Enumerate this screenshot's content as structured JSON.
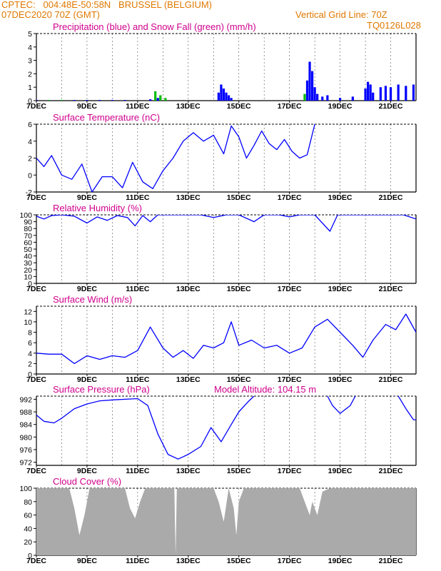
{
  "header": {
    "line1": "CPTEC:   004:48E-50:58N   BRUSSEL (BELGIUM)",
    "line2": "07DEC2020 70Z (GMT)",
    "grid_note": "Vertical Grid Line: 70Z",
    "code": "TQ0126L028"
  },
  "colors": {
    "title": "#d0008c",
    "header": "#e07800",
    "line": "#0000ff",
    "snow": "#00bb00",
    "cloud": "#aaaaaa"
  },
  "x_ticks": [
    "7DEC",
    "9DEC",
    "11DEC",
    "13DEC",
    "15DEC",
    "17DEC",
    "19DEC",
    "21DEC"
  ],
  "chart_data": [
    {
      "type": "bar",
      "title": "Precipitation (blue) and Snow Fall (green) (mm/h)",
      "ylim": [
        0,
        5
      ],
      "yticks": [
        0,
        1,
        2,
        3,
        4,
        5
      ],
      "series": [
        {
          "name": "Precipitation",
          "values": [
            [
              7.0,
              0.05
            ],
            [
              7.5,
              0.05
            ],
            [
              8.0,
              0.05
            ],
            [
              8.5,
              0.05
            ],
            [
              9.0,
              0.05
            ],
            [
              9.5,
              0.05
            ],
            [
              10.0,
              0.05
            ],
            [
              10.5,
              0.05
            ],
            [
              11.5,
              0.1
            ],
            [
              11.8,
              0.2
            ],
            [
              14.2,
              0.6
            ],
            [
              14.3,
              1.2
            ],
            [
              14.4,
              0.9
            ],
            [
              14.5,
              0.6
            ],
            [
              14.6,
              0.4
            ],
            [
              14.7,
              0.2
            ],
            [
              17.7,
              1.5
            ],
            [
              17.8,
              2.9
            ],
            [
              17.9,
              2.2
            ],
            [
              18.0,
              1.0
            ],
            [
              18.1,
              0.5
            ],
            [
              18.3,
              0.3
            ],
            [
              18.5,
              0.4
            ],
            [
              19.0,
              0.2
            ],
            [
              19.5,
              0.3
            ],
            [
              20.0,
              0.9
            ],
            [
              20.1,
              1.4
            ],
            [
              20.2,
              1.2
            ],
            [
              20.3,
              0.6
            ],
            [
              20.6,
              1.0
            ],
            [
              20.8,
              1.1
            ],
            [
              21.0,
              1.0
            ],
            [
              21.3,
              1.2
            ],
            [
              21.6,
              1.1
            ],
            [
              21.9,
              1.2
            ]
          ]
        },
        {
          "name": "Snow Fall",
          "values": [
            [
              7.5,
              0.05
            ],
            [
              8.0,
              0.05
            ],
            [
              11.7,
              0.7
            ],
            [
              11.9,
              0.4
            ],
            [
              12.1,
              0.2
            ],
            [
              17.6,
              0.5
            ]
          ]
        }
      ]
    },
    {
      "type": "line",
      "title": "Surface Temperature (nC)",
      "ylim": [
        -2,
        6
      ],
      "yticks": [
        -2,
        0,
        2,
        4,
        6
      ],
      "series": [
        {
          "name": "Surface Temperature",
          "values": [
            [
              7.0,
              2.0
            ],
            [
              7.3,
              1.0
            ],
            [
              7.6,
              2.3
            ],
            [
              8.0,
              0.0
            ],
            [
              8.4,
              -0.5
            ],
            [
              8.8,
              1.3
            ],
            [
              9.2,
              -2.0
            ],
            [
              9.6,
              -0.2
            ],
            [
              10.0,
              -0.2
            ],
            [
              10.4,
              -1.5
            ],
            [
              10.8,
              1.5
            ],
            [
              11.2,
              -0.8
            ],
            [
              11.6,
              -1.6
            ],
            [
              12.0,
              0.5
            ],
            [
              12.4,
              2.0
            ],
            [
              12.8,
              4.0
            ],
            [
              13.2,
              5.0
            ],
            [
              13.6,
              4.0
            ],
            [
              14.0,
              4.7
            ],
            [
              14.4,
              2.5
            ],
            [
              14.7,
              5.8
            ],
            [
              15.0,
              4.5
            ],
            [
              15.3,
              2.0
            ],
            [
              15.6,
              3.5
            ],
            [
              15.9,
              5.2
            ],
            [
              16.2,
              3.7
            ],
            [
              16.5,
              3.0
            ],
            [
              16.8,
              4.2
            ],
            [
              17.1,
              2.8
            ],
            [
              17.4,
              2.0
            ],
            [
              17.7,
              2.4
            ],
            [
              18.0,
              6.0
            ]
          ]
        }
      ]
    },
    {
      "type": "line",
      "title": "Relative Humidity (%)",
      "ylim": [
        0,
        100
      ],
      "yticks": [
        0,
        10,
        20,
        30,
        40,
        50,
        60,
        70,
        80,
        90,
        100
      ],
      "series": [
        {
          "name": "Relative Humidity",
          "values": [
            [
              7.0,
              98
            ],
            [
              7.3,
              94
            ],
            [
              7.6,
              99
            ],
            [
              8.0,
              100
            ],
            [
              8.5,
              98
            ],
            [
              9.0,
              88
            ],
            [
              9.4,
              97
            ],
            [
              9.8,
              92
            ],
            [
              10.2,
              99
            ],
            [
              10.6,
              96
            ],
            [
              10.9,
              84
            ],
            [
              11.2,
              99
            ],
            [
              11.5,
              90
            ],
            [
              11.8,
              100
            ],
            [
              12.5,
              100
            ],
            [
              13.0,
              100
            ],
            [
              13.5,
              100
            ],
            [
              14.0,
              96
            ],
            [
              14.5,
              100
            ],
            [
              15.0,
              100
            ],
            [
              15.6,
              90
            ],
            [
              16.0,
              100
            ],
            [
              16.6,
              100
            ],
            [
              17.0,
              97
            ],
            [
              17.4,
              100
            ],
            [
              18.0,
              100
            ],
            [
              18.6,
              76
            ],
            [
              18.9,
              100
            ],
            [
              19.5,
              100
            ],
            [
              20.0,
              100
            ],
            [
              20.5,
              100
            ],
            [
              21.0,
              100
            ],
            [
              21.5,
              100
            ],
            [
              22.0,
              94
            ]
          ]
        }
      ]
    },
    {
      "type": "line",
      "title": "Surface Wind (m/s)",
      "ylim": [
        0,
        13
      ],
      "yticks": [
        0,
        2,
        4,
        6,
        8,
        10,
        12
      ],
      "series": [
        {
          "name": "Surface Wind",
          "values": [
            [
              7.0,
              4.0
            ],
            [
              7.5,
              3.8
            ],
            [
              8.0,
              3.8
            ],
            [
              8.5,
              2.0
            ],
            [
              9.0,
              3.5
            ],
            [
              9.5,
              2.8
            ],
            [
              10.0,
              3.5
            ],
            [
              10.5,
              3.2
            ],
            [
              11.0,
              4.5
            ],
            [
              11.5,
              9.0
            ],
            [
              12.0,
              5.0
            ],
            [
              12.4,
              3.2
            ],
            [
              12.8,
              4.5
            ],
            [
              13.2,
              3.0
            ],
            [
              13.6,
              5.5
            ],
            [
              14.0,
              5.0
            ],
            [
              14.4,
              6.0
            ],
            [
              14.7,
              10.0
            ],
            [
              15.0,
              5.5
            ],
            [
              15.5,
              6.5
            ],
            [
              16.0,
              5.0
            ],
            [
              16.5,
              5.5
            ],
            [
              17.0,
              4.0
            ],
            [
              17.5,
              5.0
            ],
            [
              18.0,
              9.0
            ],
            [
              18.5,
              10.5
            ],
            [
              19.0,
              8.0
            ],
            [
              19.5,
              5.5
            ],
            [
              19.9,
              3.2
            ],
            [
              20.3,
              6.5
            ],
            [
              20.8,
              9.5
            ],
            [
              21.2,
              8.5
            ],
            [
              21.6,
              11.5
            ],
            [
              22.0,
              8.0
            ]
          ]
        }
      ]
    },
    {
      "type": "line",
      "title": "Surface Pressure (hPa)",
      "annotation": "Model Altitude: 104.15 m",
      "ylim": [
        971,
        993
      ],
      "yticks": [
        972,
        976,
        980,
        984,
        988,
        992
      ],
      "series": [
        {
          "name": "Surface Pressure",
          "values": [
            [
              7.0,
              987.0
            ],
            [
              7.3,
              985.0
            ],
            [
              7.7,
              984.5
            ],
            [
              8.0,
              986.0
            ],
            [
              8.5,
              989.0
            ],
            [
              9.0,
              990.5
            ],
            [
              9.5,
              991.5
            ],
            [
              10.0,
              991.8
            ],
            [
              10.5,
              992.0
            ],
            [
              11.0,
              992.2
            ],
            [
              11.4,
              990.0
            ],
            [
              11.8,
              981.0
            ],
            [
              12.2,
              974.5
            ],
            [
              12.6,
              973.0
            ],
            [
              13.0,
              974.5
            ],
            [
              13.5,
              977.0
            ],
            [
              13.9,
              983.0
            ],
            [
              14.3,
              978.5
            ],
            [
              14.7,
              984.0
            ],
            [
              15.0,
              988.0
            ],
            [
              15.4,
              991.5
            ],
            [
              15.6,
              993.0
            ]
          ]
        },
        {
          "name": "Surface Pressure (b)",
          "values": [
            [
              18.5,
              993.0
            ],
            [
              18.7,
              990.0
            ],
            [
              19.0,
              987.5
            ],
            [
              19.4,
              990.0
            ],
            [
              19.6,
              993.0
            ]
          ]
        },
        {
          "name": "Surface Pressure (c)",
          "values": [
            [
              21.3,
              993.0
            ],
            [
              21.6,
              989.0
            ],
            [
              21.9,
              985.5
            ],
            [
              22.0,
              985.5
            ]
          ]
        }
      ]
    },
    {
      "type": "area",
      "title": "Cloud Cover (%)",
      "ylim": [
        0,
        100
      ],
      "yticks": [
        0,
        20,
        40,
        60,
        80,
        100
      ],
      "series": [
        {
          "name": "Cloud Cover",
          "values": [
            [
              7.0,
              100
            ],
            [
              8.3,
              100
            ],
            [
              8.5,
              70
            ],
            [
              8.7,
              30
            ],
            [
              8.9,
              60
            ],
            [
              9.1,
              100
            ],
            [
              10.5,
              100
            ],
            [
              10.7,
              70
            ],
            [
              10.9,
              55
            ],
            [
              11.1,
              80
            ],
            [
              11.3,
              100
            ],
            [
              12.45,
              100
            ],
            [
              12.5,
              0
            ],
            [
              12.55,
              100
            ],
            [
              14.0,
              100
            ],
            [
              14.2,
              80
            ],
            [
              14.4,
              50
            ],
            [
              14.6,
              100
            ],
            [
              14.8,
              70
            ],
            [
              14.9,
              30
            ],
            [
              15.0,
              80
            ],
            [
              15.2,
              100
            ],
            [
              17.4,
              100
            ],
            [
              17.6,
              80
            ],
            [
              17.8,
              60
            ],
            [
              17.9,
              80
            ],
            [
              18.1,
              60
            ],
            [
              18.3,
              95
            ],
            [
              18.6,
              100
            ],
            [
              22.0,
              100
            ]
          ]
        }
      ]
    }
  ]
}
